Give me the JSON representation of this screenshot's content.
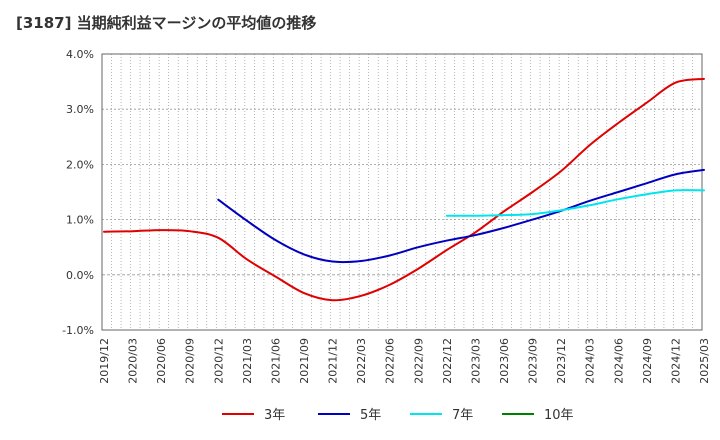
{
  "title": "[3187]  当期純利益マージンの平均値の推移",
  "chart_data": {
    "type": "line",
    "title": "[3187]  当期純利益マージンの平均値の推移",
    "ylim": [
      -1.0,
      4.0
    ],
    "y_ticks": [
      {
        "value": -1.0,
        "label": "-1.0%"
      },
      {
        "value": 0.0,
        "label": "0.0%"
      },
      {
        "value": 1.0,
        "label": "1.0%"
      },
      {
        "value": 2.0,
        "label": "2.0%"
      },
      {
        "value": 3.0,
        "label": "3.0%"
      },
      {
        "value": 4.0,
        "label": "4.0%"
      }
    ],
    "x_labels": [
      "2019/12",
      "2020/03",
      "2020/06",
      "2020/09",
      "2020/12",
      "2021/03",
      "2021/06",
      "2021/09",
      "2021/12",
      "2022/03",
      "2022/06",
      "2022/09",
      "2022/12",
      "2023/03",
      "2023/06",
      "2023/09",
      "2023/12",
      "2024/03",
      "2024/06",
      "2024/09",
      "2024/12",
      "2025/03"
    ],
    "grid": true,
    "legend_position": "bottom",
    "series": [
      {
        "name": "3年",
        "color": "#e00000",
        "values": [
          0.78,
          0.79,
          0.81,
          0.79,
          0.67,
          0.28,
          -0.03,
          -0.33,
          -0.46,
          -0.38,
          -0.18,
          0.11,
          0.45,
          0.77,
          1.15,
          1.5,
          1.88,
          2.35,
          2.75,
          3.12,
          3.48,
          3.55
        ]
      },
      {
        "name": "5年",
        "color": "#0000c0",
        "values": [
          null,
          null,
          null,
          null,
          1.36,
          0.98,
          0.63,
          0.37,
          0.24,
          0.25,
          0.35,
          0.5,
          0.62,
          0.72,
          0.85,
          1.0,
          1.16,
          1.34,
          1.5,
          1.66,
          1.82,
          1.9
        ]
      },
      {
        "name": "7年",
        "color": "#00e5ee",
        "values": [
          null,
          null,
          null,
          null,
          null,
          null,
          null,
          null,
          null,
          null,
          null,
          null,
          1.07,
          1.07,
          1.08,
          1.1,
          1.17,
          1.26,
          1.37,
          1.46,
          1.53,
          1.53
        ]
      },
      {
        "name": "10年",
        "color": "#008000",
        "values": []
      }
    ]
  }
}
